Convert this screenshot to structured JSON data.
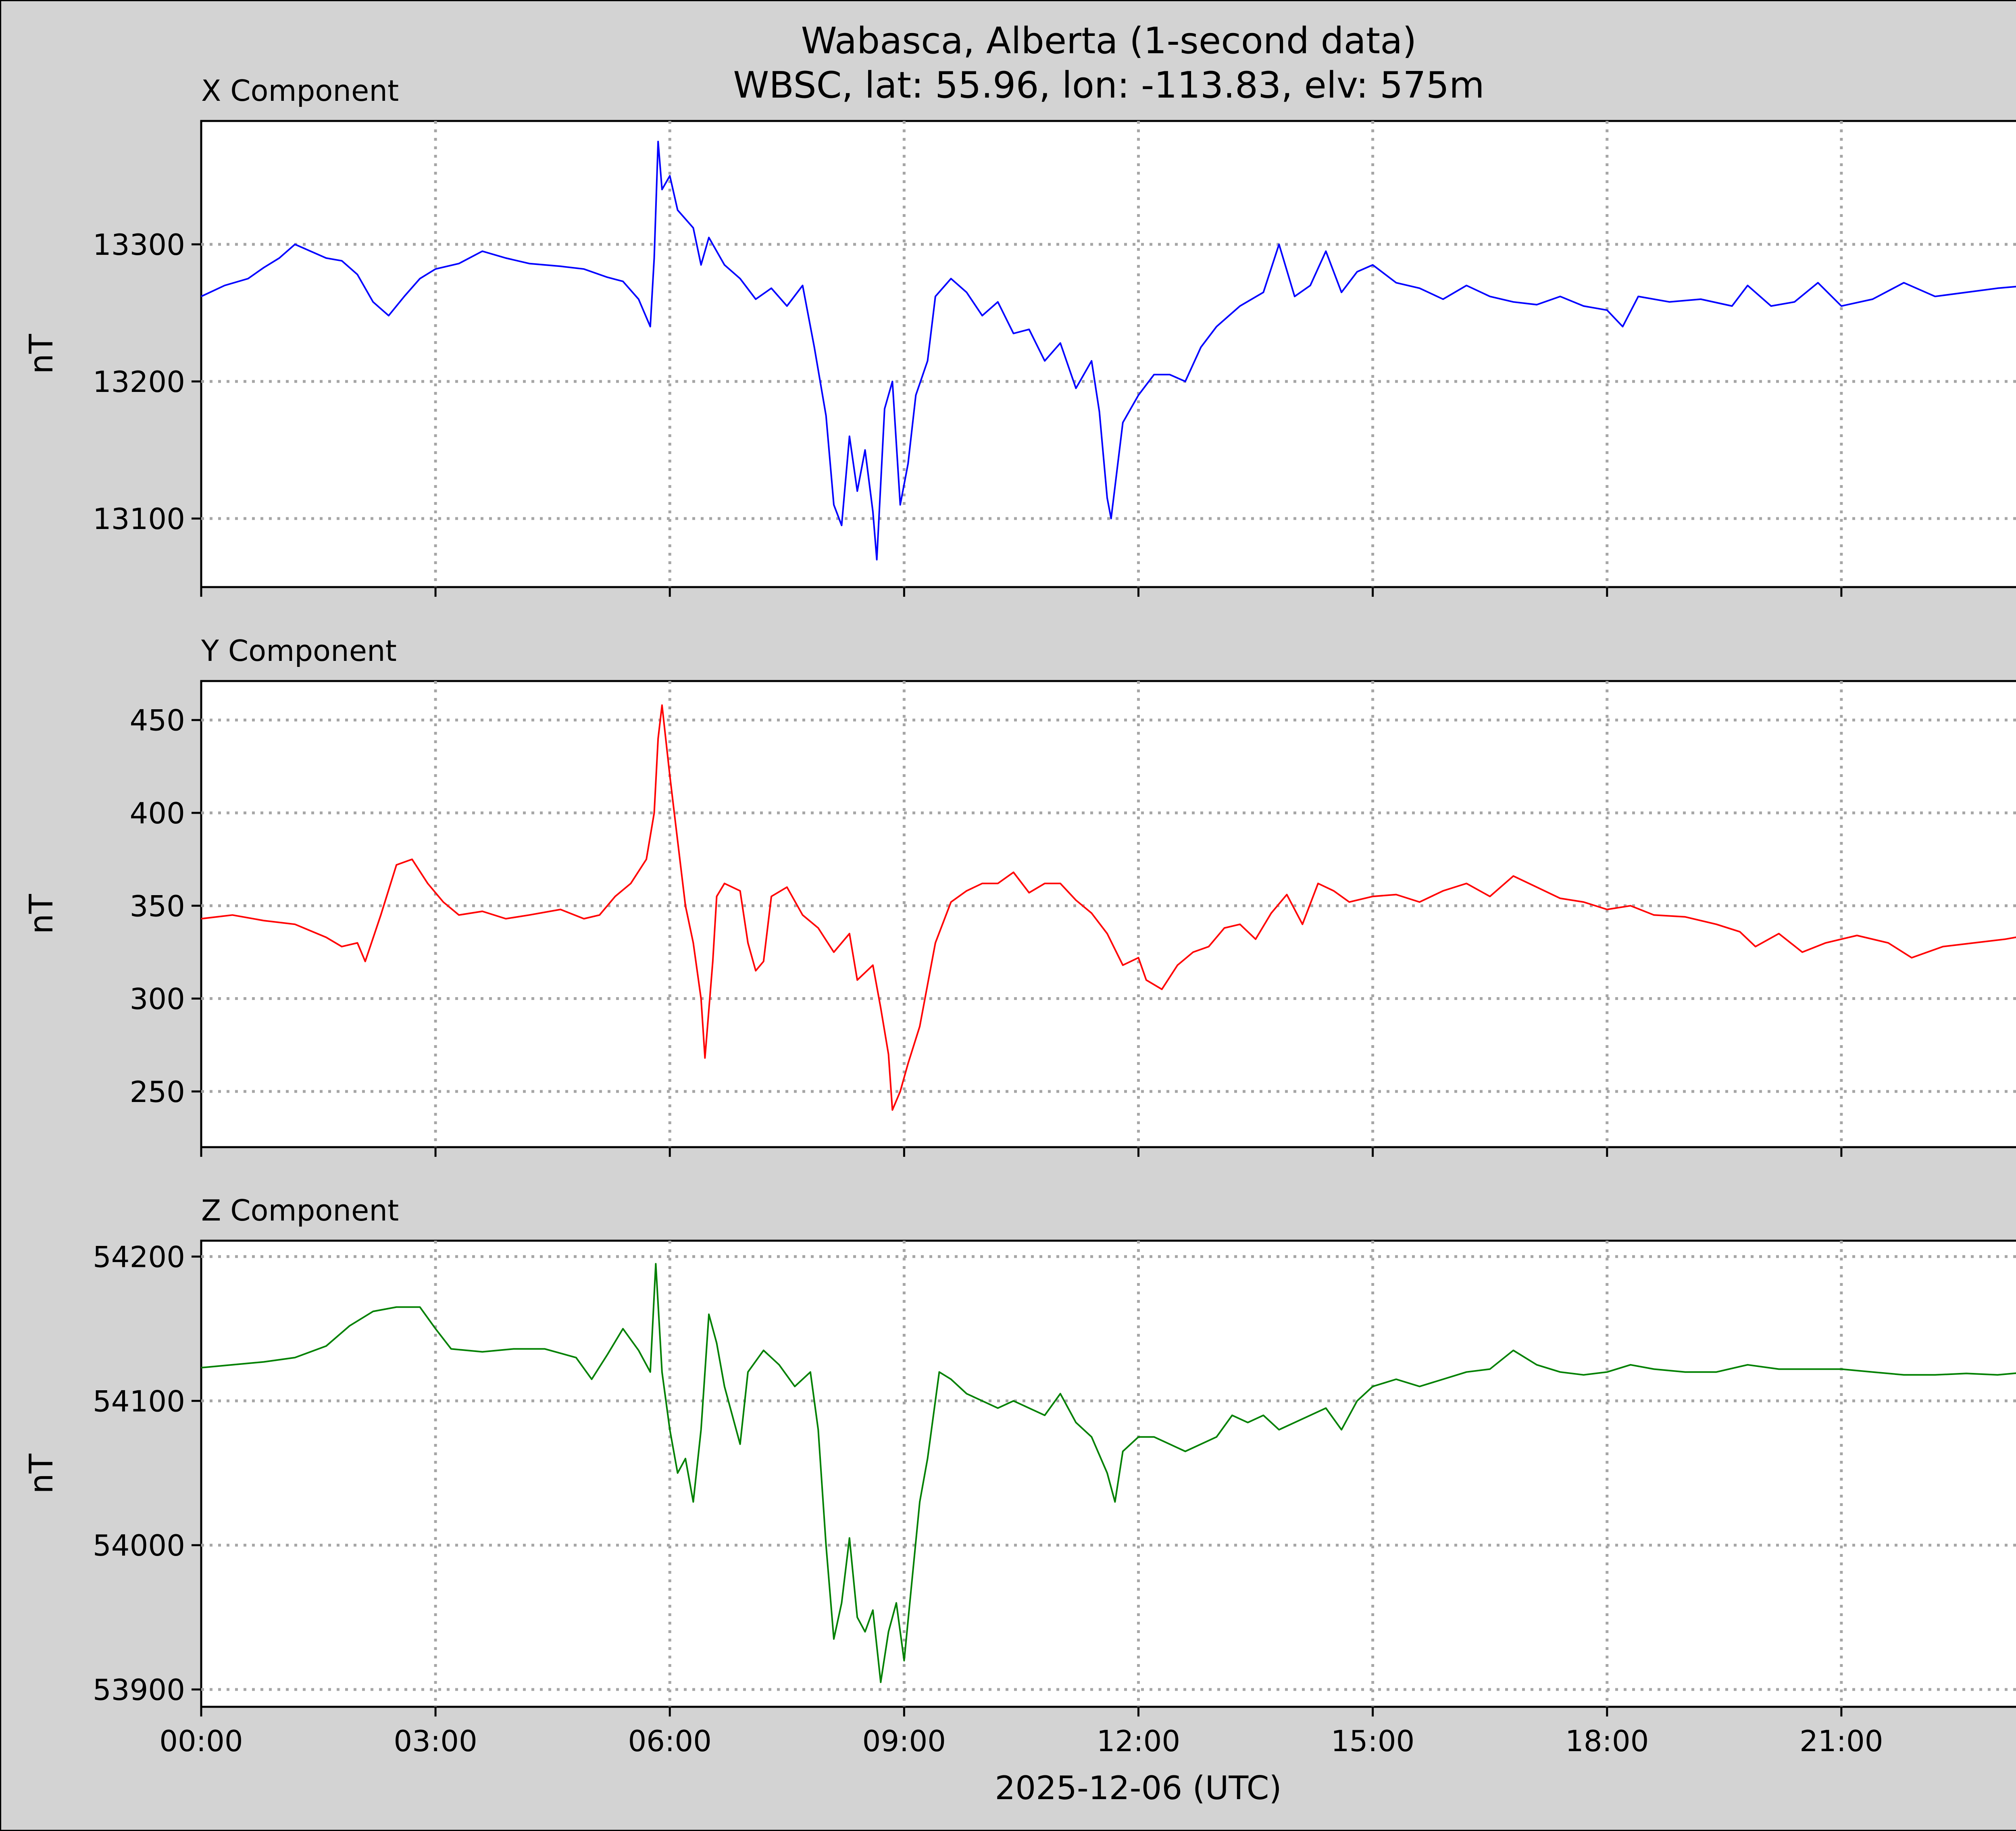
{
  "title_line1": "Wabasca, Alberta (1-second data)",
  "title_line2": "WBSC, lat: 55.96, lon: -113.83, elv: 575m",
  "xlabel": "2025-12-06 (UTC)",
  "chart_data": [
    {
      "type": "line",
      "title": "X Component",
      "ylabel": "nT",
      "color": "#0000ff",
      "ylim": [
        13050,
        13390
      ],
      "yticks": [
        13100,
        13200,
        13300
      ],
      "xlim": [
        0,
        24
      ],
      "xticks": [
        "00:00",
        "03:00",
        "06:00",
        "09:00",
        "12:00",
        "15:00",
        "18:00",
        "21:00"
      ],
      "grid": true,
      "points": [
        [
          0,
          13262
        ],
        [
          0.3,
          13270
        ],
        [
          0.6,
          13275
        ],
        [
          0.8,
          13283
        ],
        [
          1.0,
          13290
        ],
        [
          1.2,
          13300
        ],
        [
          1.4,
          13295
        ],
        [
          1.6,
          13290
        ],
        [
          1.8,
          13288
        ],
        [
          2.0,
          13278
        ],
        [
          2.2,
          13258
        ],
        [
          2.4,
          13248
        ],
        [
          2.6,
          13262
        ],
        [
          2.8,
          13275
        ],
        [
          3.0,
          13282
        ],
        [
          3.3,
          13286
        ],
        [
          3.6,
          13295
        ],
        [
          3.9,
          13290
        ],
        [
          4.2,
          13286
        ],
        [
          4.6,
          13284
        ],
        [
          4.9,
          13282
        ],
        [
          5.2,
          13276
        ],
        [
          5.4,
          13273
        ],
        [
          5.6,
          13260
        ],
        [
          5.75,
          13240
        ],
        [
          5.8,
          13290
        ],
        [
          5.85,
          13375
        ],
        [
          5.9,
          13340
        ],
        [
          6.0,
          13350
        ],
        [
          6.1,
          13325
        ],
        [
          6.3,
          13312
        ],
        [
          6.4,
          13285
        ],
        [
          6.5,
          13305
        ],
        [
          6.7,
          13285
        ],
        [
          6.9,
          13275
        ],
        [
          7.1,
          13260
        ],
        [
          7.3,
          13268
        ],
        [
          7.5,
          13255
        ],
        [
          7.7,
          13270
        ],
        [
          7.85,
          13225
        ],
        [
          8.0,
          13175
        ],
        [
          8.1,
          13110
        ],
        [
          8.2,
          13095
        ],
        [
          8.3,
          13160
        ],
        [
          8.4,
          13120
        ],
        [
          8.5,
          13150
        ],
        [
          8.6,
          13105
        ],
        [
          8.65,
          13070
        ],
        [
          8.75,
          13180
        ],
        [
          8.85,
          13200
        ],
        [
          8.95,
          13110
        ],
        [
          9.05,
          13140
        ],
        [
          9.15,
          13190
        ],
        [
          9.3,
          13215
        ],
        [
          9.4,
          13262
        ],
        [
          9.6,
          13275
        ],
        [
          9.8,
          13265
        ],
        [
          10.0,
          13248
        ],
        [
          10.2,
          13258
        ],
        [
          10.4,
          13235
        ],
        [
          10.6,
          13238
        ],
        [
          10.8,
          13215
        ],
        [
          11.0,
          13228
        ],
        [
          11.2,
          13195
        ],
        [
          11.4,
          13215
        ],
        [
          11.5,
          13178
        ],
        [
          11.6,
          13115
        ],
        [
          11.65,
          13100
        ],
        [
          11.8,
          13170
        ],
        [
          12.0,
          13190
        ],
        [
          12.2,
          13205
        ],
        [
          12.4,
          13205
        ],
        [
          12.6,
          13200
        ],
        [
          12.8,
          13225
        ],
        [
          13.0,
          13240
        ],
        [
          13.3,
          13255
        ],
        [
          13.6,
          13265
        ],
        [
          13.8,
          13300
        ],
        [
          14.0,
          13262
        ],
        [
          14.2,
          13270
        ],
        [
          14.4,
          13295
        ],
        [
          14.6,
          13265
        ],
        [
          14.8,
          13280
        ],
        [
          15.0,
          13285
        ],
        [
          15.3,
          13272
        ],
        [
          15.6,
          13268
        ],
        [
          15.9,
          13260
        ],
        [
          16.2,
          13270
        ],
        [
          16.5,
          13262
        ],
        [
          16.8,
          13258
        ],
        [
          17.1,
          13256
        ],
        [
          17.4,
          13262
        ],
        [
          17.7,
          13255
        ],
        [
          18.0,
          13252
        ],
        [
          18.2,
          13240
        ],
        [
          18.4,
          13262
        ],
        [
          18.8,
          13258
        ],
        [
          19.2,
          13260
        ],
        [
          19.6,
          13255
        ],
        [
          19.8,
          13270
        ],
        [
          20.1,
          13255
        ],
        [
          20.4,
          13258
        ],
        [
          20.7,
          13272
        ],
        [
          21.0,
          13255
        ],
        [
          21.4,
          13260
        ],
        [
          21.8,
          13272
        ],
        [
          22.2,
          13262
        ],
        [
          22.6,
          13265
        ],
        [
          23.0,
          13268
        ],
        [
          23.4,
          13270
        ],
        [
          23.8,
          13278
        ],
        [
          24.0,
          13268
        ]
      ]
    },
    {
      "type": "line",
      "title": "Y Component",
      "ylabel": "nT",
      "color": "#ff0000",
      "ylim": [
        220,
        471
      ],
      "yticks": [
        250,
        300,
        350,
        400,
        450
      ],
      "xlim": [
        0,
        24
      ],
      "xticks": [
        "00:00",
        "03:00",
        "06:00",
        "09:00",
        "12:00",
        "15:00",
        "18:00",
        "21:00"
      ],
      "grid": true,
      "points": [
        [
          0,
          343
        ],
        [
          0.4,
          345
        ],
        [
          0.8,
          342
        ],
        [
          1.2,
          340
        ],
        [
          1.6,
          333
        ],
        [
          1.8,
          328
        ],
        [
          2.0,
          330
        ],
        [
          2.1,
          320
        ],
        [
          2.3,
          345
        ],
        [
          2.5,
          372
        ],
        [
          2.7,
          375
        ],
        [
          2.9,
          362
        ],
        [
          3.1,
          352
        ],
        [
          3.3,
          345
        ],
        [
          3.6,
          347
        ],
        [
          3.9,
          343
        ],
        [
          4.2,
          345
        ],
        [
          4.6,
          348
        ],
        [
          4.9,
          343
        ],
        [
          5.1,
          345
        ],
        [
          5.3,
          355
        ],
        [
          5.5,
          362
        ],
        [
          5.7,
          375
        ],
        [
          5.8,
          400
        ],
        [
          5.85,
          440
        ],
        [
          5.9,
          458
        ],
        [
          6.0,
          420
        ],
        [
          6.1,
          385
        ],
        [
          6.2,
          350
        ],
        [
          6.3,
          330
        ],
        [
          6.4,
          300
        ],
        [
          6.45,
          268
        ],
        [
          6.55,
          320
        ],
        [
          6.6,
          355
        ],
        [
          6.7,
          362
        ],
        [
          6.9,
          358
        ],
        [
          7.0,
          330
        ],
        [
          7.1,
          315
        ],
        [
          7.2,
          320
        ],
        [
          7.3,
          355
        ],
        [
          7.5,
          360
        ],
        [
          7.7,
          345
        ],
        [
          7.9,
          338
        ],
        [
          8.1,
          325
        ],
        [
          8.3,
          335
        ],
        [
          8.4,
          310
        ],
        [
          8.6,
          318
        ],
        [
          8.7,
          295
        ],
        [
          8.8,
          270
        ],
        [
          8.85,
          240
        ],
        [
          8.95,
          250
        ],
        [
          9.05,
          265
        ],
        [
          9.2,
          285
        ],
        [
          9.4,
          330
        ],
        [
          9.6,
          352
        ],
        [
          9.8,
          358
        ],
        [
          10.0,
          362
        ],
        [
          10.2,
          362
        ],
        [
          10.4,
          368
        ],
        [
          10.6,
          357
        ],
        [
          10.8,
          362
        ],
        [
          11.0,
          362
        ],
        [
          11.2,
          353
        ],
        [
          11.4,
          346
        ],
        [
          11.6,
          335
        ],
        [
          11.8,
          318
        ],
        [
          12.0,
          322
        ],
        [
          12.1,
          310
        ],
        [
          12.3,
          305
        ],
        [
          12.5,
          318
        ],
        [
          12.7,
          325
        ],
        [
          12.9,
          328
        ],
        [
          13.1,
          338
        ],
        [
          13.3,
          340
        ],
        [
          13.5,
          332
        ],
        [
          13.7,
          346
        ],
        [
          13.9,
          356
        ],
        [
          14.1,
          340
        ],
        [
          14.3,
          362
        ],
        [
          14.5,
          358
        ],
        [
          14.7,
          352
        ],
        [
          15.0,
          355
        ],
        [
          15.3,
          356
        ],
        [
          15.6,
          352
        ],
        [
          15.9,
          358
        ],
        [
          16.2,
          362
        ],
        [
          16.5,
          355
        ],
        [
          16.8,
          366
        ],
        [
          17.1,
          360
        ],
        [
          17.4,
          354
        ],
        [
          17.7,
          352
        ],
        [
          18.0,
          348
        ],
        [
          18.3,
          350
        ],
        [
          18.6,
          345
        ],
        [
          19.0,
          344
        ],
        [
          19.4,
          340
        ],
        [
          19.7,
          336
        ],
        [
          19.9,
          328
        ],
        [
          20.2,
          335
        ],
        [
          20.5,
          325
        ],
        [
          20.8,
          330
        ],
        [
          21.2,
          334
        ],
        [
          21.6,
          330
        ],
        [
          21.9,
          322
        ],
        [
          22.3,
          328
        ],
        [
          22.7,
          330
        ],
        [
          23.1,
          332
        ],
        [
          23.5,
          335
        ],
        [
          23.8,
          338
        ],
        [
          24.0,
          339
        ]
      ]
    },
    {
      "type": "line",
      "title": "Z Component",
      "ylabel": "nT",
      "color": "#008000",
      "ylim": [
        53888,
        54211
      ],
      "yticks": [
        53900,
        54000,
        54100,
        54200
      ],
      "xlim": [
        0,
        24
      ],
      "xticks": [
        "00:00",
        "03:00",
        "06:00",
        "09:00",
        "12:00",
        "15:00",
        "18:00",
        "21:00"
      ],
      "grid": true,
      "points": [
        [
          0,
          54123
        ],
        [
          0.4,
          54125
        ],
        [
          0.8,
          54127
        ],
        [
          1.2,
          54130
        ],
        [
          1.6,
          54138
        ],
        [
          1.9,
          54152
        ],
        [
          2.2,
          54162
        ],
        [
          2.5,
          54165
        ],
        [
          2.8,
          54165
        ],
        [
          3.0,
          54150
        ],
        [
          3.2,
          54136
        ],
        [
          3.6,
          54134
        ],
        [
          4.0,
          54136
        ],
        [
          4.4,
          54136
        ],
        [
          4.8,
          54130
        ],
        [
          5.0,
          54115
        ],
        [
          5.2,
          54132
        ],
        [
          5.4,
          54150
        ],
        [
          5.6,
          54135
        ],
        [
          5.75,
          54120
        ],
        [
          5.82,
          54195
        ],
        [
          5.9,
          54120
        ],
        [
          6.0,
          54080
        ],
        [
          6.1,
          54050
        ],
        [
          6.2,
          54060
        ],
        [
          6.3,
          54030
        ],
        [
          6.4,
          54080
        ],
        [
          6.5,
          54160
        ],
        [
          6.6,
          54140
        ],
        [
          6.7,
          54110
        ],
        [
          6.8,
          54090
        ],
        [
          6.9,
          54070
        ],
        [
          7.0,
          54120
        ],
        [
          7.2,
          54135
        ],
        [
          7.4,
          54125
        ],
        [
          7.6,
          54110
        ],
        [
          7.8,
          54120
        ],
        [
          7.9,
          54080
        ],
        [
          8.0,
          54000
        ],
        [
          8.1,
          53935
        ],
        [
          8.2,
          53960
        ],
        [
          8.3,
          54005
        ],
        [
          8.4,
          53950
        ],
        [
          8.5,
          53940
        ],
        [
          8.6,
          53955
        ],
        [
          8.7,
          53905
        ],
        [
          8.8,
          53940
        ],
        [
          8.9,
          53960
        ],
        [
          9.0,
          53920
        ],
        [
          9.1,
          53975
        ],
        [
          9.2,
          54030
        ],
        [
          9.3,
          54060
        ],
        [
          9.45,
          54120
        ],
        [
          9.6,
          54115
        ],
        [
          9.8,
          54105
        ],
        [
          10.0,
          54100
        ],
        [
          10.2,
          54095
        ],
        [
          10.4,
          54100
        ],
        [
          10.6,
          54095
        ],
        [
          10.8,
          54090
        ],
        [
          11.0,
          54105
        ],
        [
          11.2,
          54085
        ],
        [
          11.4,
          54075
        ],
        [
          11.6,
          54050
        ],
        [
          11.7,
          54030
        ],
        [
          11.8,
          54065
        ],
        [
          12.0,
          54075
        ],
        [
          12.2,
          54075
        ],
        [
          12.4,
          54070
        ],
        [
          12.6,
          54065
        ],
        [
          12.8,
          54070
        ],
        [
          13.0,
          54075
        ],
        [
          13.2,
          54090
        ],
        [
          13.4,
          54085
        ],
        [
          13.6,
          54090
        ],
        [
          13.8,
          54080
        ],
        [
          14.0,
          54085
        ],
        [
          14.2,
          54090
        ],
        [
          14.4,
          54095
        ],
        [
          14.6,
          54080
        ],
        [
          14.8,
          54100
        ],
        [
          15.0,
          54110
        ],
        [
          15.3,
          54115
        ],
        [
          15.6,
          54110
        ],
        [
          15.9,
          54115
        ],
        [
          16.2,
          54120
        ],
        [
          16.5,
          54122
        ],
        [
          16.8,
          54135
        ],
        [
          17.1,
          54125
        ],
        [
          17.4,
          54120
        ],
        [
          17.7,
          54118
        ],
        [
          18.0,
          54120
        ],
        [
          18.3,
          54125
        ],
        [
          18.6,
          54122
        ],
        [
          19.0,
          54120
        ],
        [
          19.4,
          54120
        ],
        [
          19.8,
          54125
        ],
        [
          20.2,
          54122
        ],
        [
          20.6,
          54122
        ],
        [
          21.0,
          54122
        ],
        [
          21.4,
          54120
        ],
        [
          21.8,
          54118
        ],
        [
          22.2,
          54118
        ],
        [
          22.6,
          54119
        ],
        [
          23.0,
          54118
        ],
        [
          23.4,
          54120
        ],
        [
          23.8,
          54122
        ],
        [
          24.0,
          54120
        ]
      ]
    }
  ]
}
